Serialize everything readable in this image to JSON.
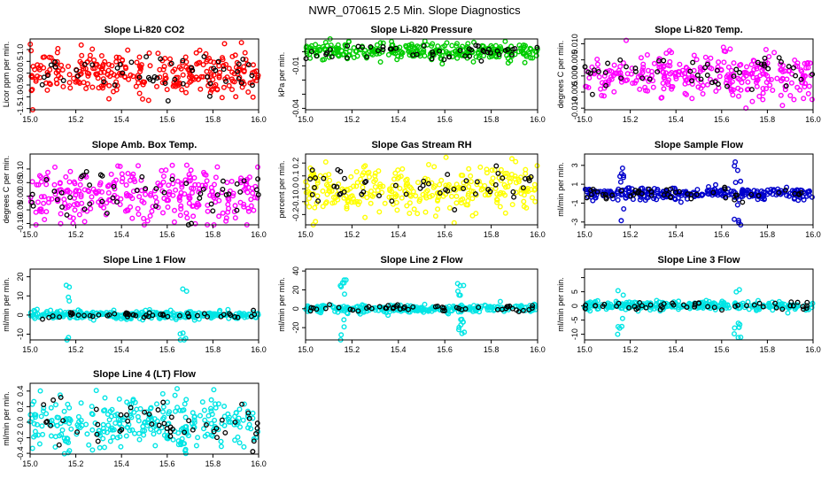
{
  "figure": {
    "title": "NWR_070615  2.5 Min. Slope Diagnostics",
    "highlight_color": "#000000"
  },
  "chart_data": [
    {
      "type": "scatter",
      "title": "Slope Li-820 CO2",
      "ylabel": "Licor ppm per min.",
      "color": "#ff0000",
      "xlim": [
        15.0,
        16.0
      ],
      "ylim": [
        -1.55,
        1.45
      ],
      "yticks": [
        -1.5,
        -1.0,
        -0.5,
        0.0,
        0.5,
        1.0
      ],
      "ytick_labels": [
        "-1.5",
        "-1.0",
        "-0.5",
        "0.0",
        "0.5",
        "1.0"
      ],
      "xticks": [
        15.0,
        15.2,
        15.4,
        15.6,
        15.8,
        16.0
      ],
      "xtick_labels": [
        "15.0",
        "15.2",
        "15.4",
        "15.6",
        "15.8",
        "16.0"
      ],
      "spread": 0.45,
      "center": 0.0
    },
    {
      "type": "scatter",
      "title": "Slope Li-820 Pressure",
      "ylabel": "kPa per min.",
      "color": "#00cc00",
      "xlim": [
        15.0,
        16.0
      ],
      "ylim": [
        -0.041,
        0.009
      ],
      "yticks": [
        -0.04,
        -0.03,
        -0.02,
        -0.01,
        0.0
      ],
      "ytick_labels": [
        "-0.04",
        "",
        "",
        "-0.01",
        ""
      ],
      "xticks": [
        15.0,
        15.2,
        15.4,
        15.6,
        15.8,
        16.0
      ],
      "xtick_labels": [
        "15.0",
        "15.2",
        "15.4",
        "15.6",
        "15.8",
        "16.0"
      ],
      "spread": 0.003,
      "center": 0.0
    },
    {
      "type": "scatter",
      "title": "Slope Li-820 Temp.",
      "ylabel": "degrees C per min.",
      "color": "#ff00ff",
      "xlim": [
        15.0,
        16.0
      ],
      "ylim": [
        -0.0105,
        0.0115
      ],
      "yticks": [
        -0.01,
        -0.005,
        0.0,
        0.005,
        0.01
      ],
      "ytick_labels": [
        "-0.010",
        "-0.005",
        "0.000",
        "0.005",
        "0.010"
      ],
      "xticks": [
        15.0,
        15.2,
        15.4,
        15.6,
        15.8,
        16.0
      ],
      "xtick_labels": [
        "15.0",
        "15.2",
        "15.4",
        "15.6",
        "15.8",
        "16.0"
      ],
      "spread": 0.0035,
      "center": 0.0
    },
    {
      "type": "scatter",
      "title": "Slope Amb. Box Temp.",
      "ylabel": "degrees C per min.",
      "color": "#ff00ff",
      "xlim": [
        15.0,
        16.0
      ],
      "ylim": [
        -0.105,
        0.155
      ],
      "yticks": [
        -0.1,
        -0.05,
        0.0,
        0.05,
        0.1
      ],
      "ytick_labels": [
        "-0.10",
        "-0.05",
        "0.00",
        "0.05",
        "0.10"
      ],
      "xticks": [
        15.0,
        15.2,
        15.4,
        15.6,
        15.8,
        16.0
      ],
      "xtick_labels": [
        "15.0",
        "15.2",
        "15.4",
        "15.6",
        "15.8",
        "16.0"
      ],
      "spread": 0.05,
      "center": 0.0
    },
    {
      "type": "scatter",
      "title": "Slope Gas Stream RH",
      "ylabel": "percent per min.",
      "color": "#ffff00",
      "xlim": [
        15.0,
        16.0
      ],
      "ylim": [
        -0.28,
        0.27
      ],
      "yticks": [
        -0.2,
        -0.1,
        0.0,
        0.1,
        0.2
      ],
      "ytick_labels": [
        "-0.2",
        "-0.1",
        "0.0",
        "0.1",
        "0.2"
      ],
      "xticks": [
        15.0,
        15.2,
        15.4,
        15.6,
        15.8,
        16.0
      ],
      "xtick_labels": [
        "15.0",
        "15.2",
        "15.4",
        "15.6",
        "15.8",
        "16.0"
      ],
      "spread": 0.09,
      "center": 0.0
    },
    {
      "type": "scatter",
      "title": "Slope Sample Flow",
      "ylabel": "ml/min per min.",
      "color": "#0000cc",
      "xlim": [
        15.0,
        16.0
      ],
      "ylim": [
        -3.3,
        4.2
      ],
      "yticks": [
        -3,
        -1,
        1,
        3
      ],
      "ytick_labels": [
        "-3",
        "-1",
        "1",
        "3"
      ],
      "xticks": [
        15.0,
        15.2,
        15.4,
        15.6,
        15.8,
        16.0
      ],
      "xtick_labels": [
        "15.0",
        "15.2",
        "15.4",
        "15.6",
        "15.8",
        "16.0"
      ],
      "spread": 0.3,
      "center": 0.0
    },
    {
      "type": "scatter",
      "title": "Slope Line 1 Flow",
      "ylabel": "ml/min per min.",
      "color": "#00e5e5",
      "xlim": [
        15.0,
        16.0
      ],
      "ylim": [
        -13,
        24
      ],
      "yticks": [
        -10,
        0,
        10,
        20
      ],
      "ytick_labels": [
        "-10",
        "0",
        "10",
        "20"
      ],
      "xticks": [
        15.0,
        15.2,
        15.4,
        15.6,
        15.8,
        16.0
      ],
      "xtick_labels": [
        "15.0",
        "15.2",
        "15.4",
        "15.6",
        "15.8",
        "16.0"
      ],
      "spread": 1.0,
      "center": 0.0
    },
    {
      "type": "scatter",
      "title": "Slope Line 2 Flow",
      "ylabel": "ml/min per min.",
      "color": "#00e5e5",
      "xlim": [
        15.0,
        16.0
      ],
      "ylim": [
        -33,
        42
      ],
      "yticks": [
        -20,
        0,
        20,
        40
      ],
      "ytick_labels": [
        "-20",
        "0",
        "20",
        "40"
      ],
      "xticks": [
        15.0,
        15.2,
        15.4,
        15.6,
        15.8,
        16.0
      ],
      "xtick_labels": [
        "15.0",
        "15.2",
        "15.4",
        "15.6",
        "15.8",
        "16.0"
      ],
      "spread": 2.0,
      "center": 0.0
    },
    {
      "type": "scatter",
      "title": "Slope Line 3 Flow",
      "ylabel": "ml/min per min.",
      "color": "#00e5e5",
      "xlim": [
        15.0,
        16.0
      ],
      "ylim": [
        -12,
        13
      ],
      "yticks": [
        -10,
        -5,
        0,
        5,
        10
      ],
      "ytick_labels": [
        "-10",
        "-5",
        "0",
        "5",
        ""
      ],
      "xticks": [
        15.0,
        15.2,
        15.4,
        15.6,
        15.8,
        16.0
      ],
      "xtick_labels": [
        "15.0",
        "15.2",
        "15.4",
        "15.6",
        "15.8",
        "16.0"
      ],
      "spread": 0.8,
      "center": 0.0
    },
    {
      "type": "scatter",
      "title": "Slope Line 4 (LT) Flow",
      "ylabel": "ml/min per min.",
      "color": "#00e5e5",
      "xlim": [
        15.0,
        16.0
      ],
      "ylim": [
        -0.41,
        0.5
      ],
      "yticks": [
        -0.4,
        -0.2,
        0.0,
        0.2,
        0.4
      ],
      "ytick_labels": [
        "-0.4",
        "-0.2",
        "0.0",
        "0.2",
        "0.4"
      ],
      "xticks": [
        15.0,
        15.2,
        15.4,
        15.6,
        15.8,
        16.0
      ],
      "xtick_labels": [
        "15.0",
        "15.2",
        "15.4",
        "15.6",
        "15.8",
        "16.0"
      ],
      "spread": 0.15,
      "center": 0.0
    }
  ]
}
